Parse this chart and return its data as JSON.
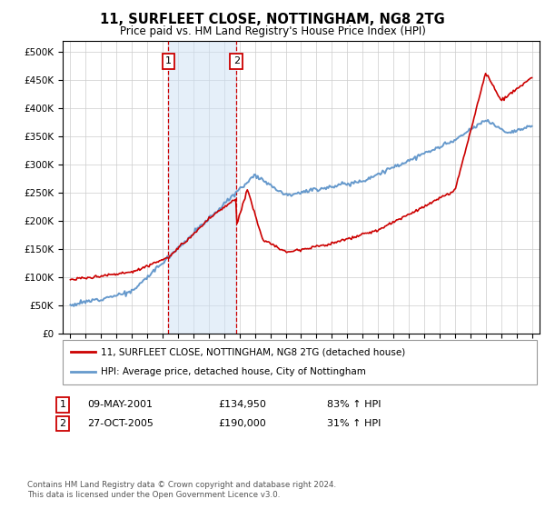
{
  "title": "11, SURFLEET CLOSE, NOTTINGHAM, NG8 2TG",
  "subtitle": "Price paid vs. HM Land Registry's House Price Index (HPI)",
  "hpi_label": "HPI: Average price, detached house, City of Nottingham",
  "property_label": "11, SURFLEET CLOSE, NOTTINGHAM, NG8 2TG (detached house)",
  "sale1_date": "09-MAY-2001",
  "sale1_price": 134950,
  "sale1_hpi": "83% ↑ HPI",
  "sale2_date": "27-OCT-2005",
  "sale2_price": 190000,
  "sale2_hpi": "31% ↑ HPI",
  "footnote": "Contains HM Land Registry data © Crown copyright and database right 2024.\nThis data is licensed under the Open Government Licence v3.0.",
  "red_color": "#cc0000",
  "blue_color": "#6699cc",
  "shade_color": "#cce0f5",
  "background_color": "#ffffff",
  "grid_color": "#cccccc",
  "sale1_x": 2001.37,
  "sale2_x": 2005.79,
  "ylim_max": 520000,
  "xlim_min": 1994.5,
  "xlim_max": 2025.5
}
